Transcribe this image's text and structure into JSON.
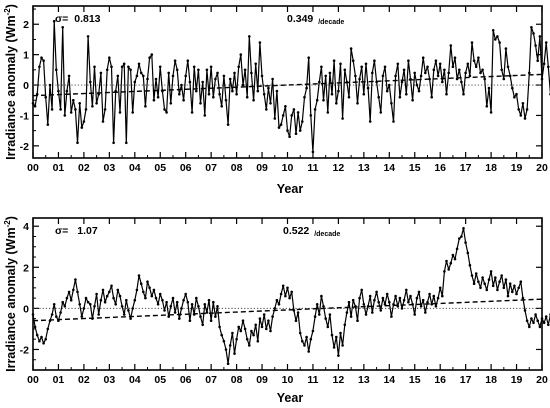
{
  "chart_data": [
    {
      "type": "line",
      "panel": "top",
      "xlabel": "Year",
      "ylabel": "Irradiance anomaly (Wm",
      "ylabel_sup": "-2",
      "ylabel_close": ")",
      "xlim": [
        2000,
        2020
      ],
      "ylim": [
        -2.4,
        2.6
      ],
      "yticks": [
        -2,
        -1,
        0,
        1,
        2
      ],
      "ytick_labels": [
        "-2",
        "-1",
        "0",
        "1",
        "2"
      ],
      "xtick_labels": [
        "00",
        "01",
        "02",
        "03",
        "04",
        "05",
        "06",
        "07",
        "08",
        "09",
        "10",
        "11",
        "12",
        "13",
        "14",
        "15",
        "16",
        "17",
        "18",
        "19",
        "20"
      ],
      "sigma_symbol": "σ=",
      "sigma_value": "0.813",
      "trend_value": "0.349",
      "trend_unit": "/decade",
      "zero_line": "dotted",
      "trend": {
        "style": "dashed",
        "x": [
          2000,
          2020
        ],
        "y": [
          -0.35,
          0.35
        ]
      },
      "series": [
        {
          "x_start": 2000.0,
          "x_step": 0.08333,
          "y": [
            -0.6,
            -0.7,
            -0.3,
            0.6,
            0.9,
            0.8,
            -0.4,
            -1.3,
            0.0,
            -0.8,
            2.1,
            0.5,
            -0.2,
            -0.8,
            1.9,
            -1.0,
            -0.2,
            0.3,
            -0.9,
            -0.5,
            -0.8,
            -1.9,
            -0.6,
            -1.4,
            -1.2,
            -0.8,
            1.6,
            0.1,
            -0.7,
            0.6,
            -0.6,
            -0.3,
            0.4,
            -1.2,
            -0.8,
            0.5,
            0.9,
            0.6,
            -1.9,
            -0.2,
            0.3,
            -0.9,
            0.6,
            0.7,
            -1.9,
            0.6,
            0.5,
            -0.9,
            0.1,
            0.3,
            0.7,
            0.4,
            0.3,
            -0.7,
            0.2,
            0.9,
            1.0,
            -0.5,
            0.2,
            -0.4,
            0.6,
            -0.2,
            -0.8,
            -0.9,
            0.4,
            -0.6,
            0.3,
            0.8,
            0.5,
            -0.3,
            0.0,
            -0.5,
            0.3,
            0.8,
            0.1,
            -0.9,
            0.6,
            -0.2,
            0.5,
            -0.6,
            0.1,
            -1.0,
            0.5,
            -0.3,
            0.6,
            -0.4,
            0.2,
            0.4,
            -0.3,
            -0.7,
            0.3,
            -0.5,
            -1.3,
            0.2,
            -0.2,
            0.4,
            -0.3,
            0.6,
            1.0,
            0.0,
            0.5,
            -0.4,
            1.6,
            0.4,
            -0.5,
            0.7,
            -0.2,
            1.4,
            0.3,
            -0.3,
            -0.8,
            -0.1,
            -0.6,
            0.2,
            -1.1,
            -0.2,
            -1.4,
            -1.3,
            -1.0,
            -0.7,
            -1.5,
            -1.7,
            -1.0,
            -0.8,
            -1.6,
            -0.9,
            -1.5,
            -1.2,
            -0.4,
            -0.1,
            0.9,
            -1.0,
            -2.2,
            -0.8,
            -0.5,
            0.1,
            0.6,
            -0.5,
            0.3,
            -0.9,
            0.4,
            -0.3,
            0.8,
            -0.6,
            -0.2,
            0.7,
            -1.1,
            0.5,
            0.1,
            -0.4,
            1.2,
            0.8,
            0.3,
            -0.6,
            0.2,
            0.6,
            -0.3,
            0.7,
            -0.1,
            -1.2,
            0.4,
            0.8,
            0.1,
            -0.4,
            -0.9,
            0.3,
            0.6,
            -0.2,
            0.0,
            -0.6,
            -1.2,
            0.3,
            0.7,
            -0.4,
            0.1,
            0.5,
            -0.3,
            0.8,
            0.2,
            -0.5,
            0.4,
            0.0,
            -0.2,
            0.3,
            0.9,
            0.4,
            0.6,
            0.2,
            -0.4,
            0.5,
            0.8,
            0.3,
            0.7,
            0.1,
            0.5,
            -0.3,
            0.4,
            1.3,
            0.6,
            0.9,
            0.2,
            0.5,
            0.1,
            -0.3,
            0.4,
            0.7,
            0.3,
            1.4,
            0.8,
            0.6,
            0.9,
            0.4,
            0.5,
            0.2,
            -0.7,
            -0.1,
            -0.9,
            1.8,
            1.5,
            1.6,
            1.4,
            0.5,
            0.2,
            1.2,
            0.6,
            0.3,
            -0.1,
            -0.4,
            -0.3,
            -0.8,
            -1.0,
            -0.6,
            -1.1,
            -0.8,
            0.4,
            1.9,
            1.7,
            1.3,
            0.8,
            1.6,
            0.2,
            0.7,
            1.4,
            0.6,
            -0.3,
            0.3,
            -0.1,
            0.2,
            0.8,
            0.6,
            -0.2,
            -0.4,
            -0.1,
            1.8,
            1.6,
            0.9
          ]
        }
      ]
    },
    {
      "type": "line",
      "panel": "bottom",
      "xlabel": "Year",
      "ylabel": "Irradiance anomaly (Wm",
      "ylabel_sup": "-2",
      "ylabel_close": ")",
      "xlim": [
        2000,
        2020
      ],
      "ylim": [
        -3.0,
        4.4
      ],
      "yticks": [
        -2,
        0,
        2,
        4
      ],
      "ytick_labels": [
        "-2",
        "0",
        "2",
        "4"
      ],
      "xtick_labels": [
        "00",
        "01",
        "02",
        "03",
        "04",
        "05",
        "06",
        "07",
        "08",
        "09",
        "10",
        "11",
        "12",
        "13",
        "14",
        "15",
        "16",
        "17",
        "18",
        "19",
        "20"
      ],
      "sigma_symbol": "σ=",
      "sigma_value": "1.07",
      "trend_value": "0.522",
      "trend_unit": "/decade",
      "zero_line": "dotted",
      "trend": {
        "style": "dashed",
        "x": [
          2000,
          2020
        ],
        "y": [
          -0.6,
          0.45
        ]
      },
      "series": [
        {
          "x_start": 2000.0,
          "x_step": 0.08333,
          "y": [
            -0.3,
            -0.9,
            -1.3,
            -1.6,
            -1.4,
            -1.7,
            -1.5,
            -1.0,
            -0.6,
            -0.3,
            0.2,
            -0.4,
            -0.6,
            -0.2,
            0.3,
            0.1,
            0.5,
            0.8,
            0.4,
            0.9,
            1.4,
            0.8,
            0.2,
            -0.4,
            0.0,
            0.5,
            0.3,
            0.2,
            -0.5,
            0.1,
            0.7,
            -0.3,
            0.4,
            0.9,
            0.3,
            0.6,
            0.8,
            1.1,
            0.5,
            0.2,
            0.9,
            0.6,
            0.1,
            -0.3,
            0.4,
            -0.1,
            -0.5,
            0.0,
            0.4,
            0.9,
            1.6,
            1.2,
            0.8,
            0.5,
            1.3,
            1.0,
            0.6,
            0.9,
            0.5,
            0.2,
            0.7,
            0.4,
            -0.1,
            0.3,
            -0.4,
            0.1,
            0.5,
            -0.2,
            0.3,
            -0.5,
            0.0,
            0.4,
            0.7,
            0.3,
            -0.6,
            0.2,
            -0.3,
            0.5,
            0.1,
            -0.4,
            -0.8,
            0.2,
            -0.2,
            0.4,
            -0.6,
            0.3,
            -0.4,
            0.1,
            -0.9,
            -1.3,
            -1.6,
            -2.0,
            -2.7,
            -1.8,
            -1.2,
            -2.2,
            -1.5,
            -0.9,
            -1.1,
            -0.6,
            -1.0,
            -1.5,
            -1.8,
            -1.1,
            -1.3,
            -0.8,
            -1.6,
            -0.5,
            -0.9,
            -0.3,
            -1.0,
            -0.6,
            -1.1,
            -0.4,
            0.0,
            0.4,
            0.2,
            0.7,
            1.1,
            0.6,
            1.0,
            0.5,
            0.8,
            -0.1,
            -0.6,
            -0.2,
            -1.2,
            -1.6,
            -1.8,
            -1.4,
            -2.1,
            -1.5,
            -1.1,
            -0.4,
            0.2,
            -0.3,
            0.6,
            0.1,
            -0.5,
            -0.9,
            -0.3,
            -1.3,
            -1.9,
            -1.4,
            -2.3,
            -1.2,
            -1.8,
            -0.8,
            -0.2,
            0.3,
            -0.4,
            0.4,
            0.1,
            -0.6,
            0.5,
            0.9,
            0.2,
            -0.3,
            0.1,
            0.6,
            -0.2,
            0.4,
            0.8,
            0.3,
            -0.1,
            0.5,
            0.2,
            0.7,
            0.3,
            -0.4,
            0.2,
            0.6,
            0.1,
            0.5,
            0.0,
            0.4,
            0.9,
            0.3,
            0.6,
            0.2,
            -0.3,
            0.5,
            0.8,
            0.1,
            0.4,
            -0.2,
            0.3,
            0.7,
            0.2,
            0.6,
            0.1,
            0.5,
            1.0,
            0.6,
            1.8,
            2.3,
            1.9,
            2.2,
            2.6,
            2.4,
            2.9,
            3.4,
            3.5,
            3.9,
            3.2,
            2.7,
            2.1,
            1.6,
            1.2,
            1.7,
            1.3,
            1.0,
            1.5,
            1.2,
            0.9,
            1.4,
            1.8,
            1.1,
            1.5,
            0.9,
            1.3,
            1.6,
            1.0,
            1.4,
            0.6,
            1.2,
            0.8,
            1.1,
            0.7,
            1.0,
            1.3,
            0.5,
            -0.1,
            -0.6,
            -0.9,
            -0.5,
            -0.7,
            -0.3,
            -0.6,
            -0.9,
            -0.5,
            -0.7,
            -0.4,
            -0.8,
            -0.3,
            -0.6,
            -0.1,
            -0.5,
            -0.8,
            -0.4,
            0.1,
            -0.3,
            -0.6,
            -0.4,
            -0.7,
            -0.8
          ]
        }
      ]
    }
  ]
}
